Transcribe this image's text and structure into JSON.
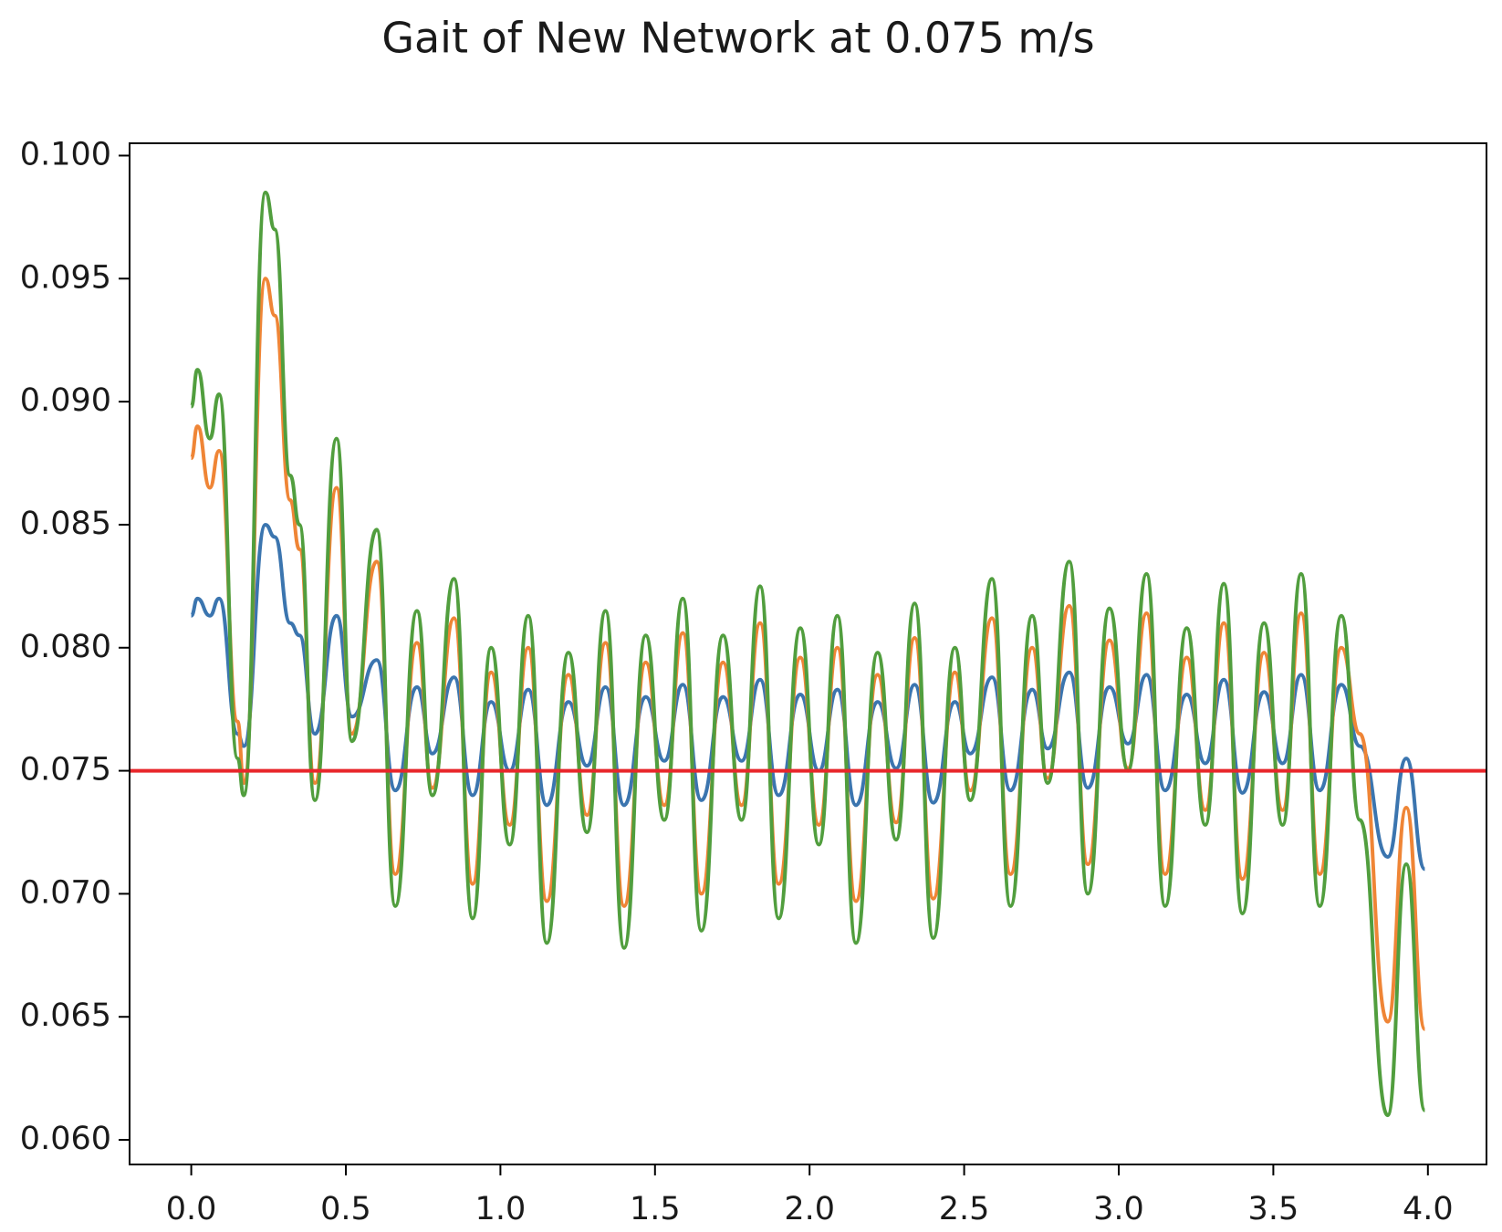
{
  "chart_data": {
    "type": "line",
    "title": "Gait of New Network at 0.075 m/s",
    "x": [
      0,
      0.02,
      0.06,
      0.09,
      0.15,
      0.17,
      0.24,
      0.27,
      0.32,
      0.35,
      0.4,
      0.47,
      0.52,
      0.6,
      0.66,
      0.73,
      0.78,
      0.85,
      0.91,
      0.97,
      1.03,
      1.09,
      1.15,
      1.22,
      1.28,
      1.34,
      1.4,
      1.47,
      1.53,
      1.59,
      1.65,
      1.72,
      1.78,
      1.84,
      1.9,
      1.97,
      2.03,
      2.09,
      2.15,
      2.22,
      2.28,
      2.34,
      2.4,
      2.47,
      2.52,
      2.59,
      2.65,
      2.72,
      2.77,
      2.84,
      2.9,
      2.97,
      3.03,
      3.09,
      3.15,
      3.22,
      3.28,
      3.34,
      3.4,
      3.47,
      3.53,
      3.59,
      3.65,
      3.72,
      3.78,
      3.87,
      3.93,
      3.99
    ],
    "series": [
      {
        "color": "#3b75af",
        "values": [
          0.0813,
          0.082,
          0.0813,
          0.082,
          0.0765,
          0.076,
          0.085,
          0.0845,
          0.081,
          0.0805,
          0.0765,
          0.0813,
          0.0772,
          0.0795,
          0.0742,
          0.0784,
          0.0757,
          0.0788,
          0.074,
          0.0778,
          0.075,
          0.0783,
          0.0736,
          0.0778,
          0.0752,
          0.0784,
          0.0736,
          0.078,
          0.0754,
          0.0785,
          0.0738,
          0.078,
          0.0754,
          0.0787,
          0.074,
          0.0781,
          0.075,
          0.0783,
          0.0736,
          0.0778,
          0.0751,
          0.0785,
          0.0737,
          0.0778,
          0.0757,
          0.0788,
          0.0742,
          0.0783,
          0.0759,
          0.079,
          0.0743,
          0.0784,
          0.0761,
          0.0789,
          0.0742,
          0.0781,
          0.0753,
          0.0787,
          0.0741,
          0.0782,
          0.0753,
          0.0789,
          0.0742,
          0.0785,
          0.076,
          0.0715,
          0.0755,
          0.071
        ]
      },
      {
        "color": "#ef8536",
        "values": [
          0.0877,
          0.089,
          0.0865,
          0.088,
          0.077,
          0.0745,
          0.095,
          0.0935,
          0.086,
          0.084,
          0.0745,
          0.0865,
          0.0765,
          0.0835,
          0.0708,
          0.0802,
          0.0743,
          0.0812,
          0.0704,
          0.079,
          0.0728,
          0.08,
          0.0697,
          0.0789,
          0.0732,
          0.0802,
          0.0695,
          0.0794,
          0.0736,
          0.0806,
          0.07,
          0.0794,
          0.0736,
          0.081,
          0.0704,
          0.0796,
          0.0728,
          0.08,
          0.0697,
          0.0789,
          0.0729,
          0.0804,
          0.0698,
          0.079,
          0.0742,
          0.0812,
          0.0708,
          0.08,
          0.0747,
          0.0817,
          0.0712,
          0.0803,
          0.0751,
          0.0814,
          0.0708,
          0.0796,
          0.0734,
          0.081,
          0.0706,
          0.0798,
          0.0734,
          0.0814,
          0.0708,
          0.08,
          0.0765,
          0.0648,
          0.0735,
          0.0645
        ]
      },
      {
        "color": "#519e3e",
        "values": [
          0.0898,
          0.0913,
          0.0885,
          0.0903,
          0.0755,
          0.074,
          0.0985,
          0.097,
          0.087,
          0.085,
          0.0738,
          0.0885,
          0.0762,
          0.0848,
          0.0695,
          0.0815,
          0.074,
          0.0828,
          0.069,
          0.08,
          0.072,
          0.0813,
          0.068,
          0.0798,
          0.0725,
          0.0815,
          0.0678,
          0.0805,
          0.073,
          0.082,
          0.0685,
          0.0805,
          0.073,
          0.0825,
          0.069,
          0.0808,
          0.072,
          0.0813,
          0.068,
          0.0798,
          0.0722,
          0.0818,
          0.0682,
          0.08,
          0.0738,
          0.0828,
          0.0695,
          0.0813,
          0.0745,
          0.0835,
          0.07,
          0.0816,
          0.075,
          0.083,
          0.0695,
          0.0808,
          0.0728,
          0.0826,
          0.0692,
          0.081,
          0.0728,
          0.083,
          0.0695,
          0.0813,
          0.073,
          0.061,
          0.0712,
          0.0612
        ]
      }
    ],
    "hline": 0.075,
    "hline_color": "#e8262a",
    "xlim": [
      -0.1995,
      4.1895
    ],
    "xticks": [
      {
        "value": 0,
        "label": "0.0"
      },
      {
        "value": 0.5,
        "label": "0.5"
      },
      {
        "value": 1,
        "label": "1.0"
      },
      {
        "value": 1.5,
        "label": "1.5"
      },
      {
        "value": 2,
        "label": "2.0"
      },
      {
        "value": 2.5,
        "label": "2.5"
      },
      {
        "value": 3,
        "label": "3.0"
      },
      {
        "value": 3.5,
        "label": "3.5"
      },
      {
        "value": 4,
        "label": "4.0"
      }
    ],
    "ylim": [
      0.059,
      0.1005
    ],
    "yticks": [
      {
        "value": 0.06,
        "label": "0.060"
      },
      {
        "value": 0.065,
        "label": "0.065"
      },
      {
        "value": 0.07,
        "label": "0.070"
      },
      {
        "value": 0.075,
        "label": "0.075"
      },
      {
        "value": 0.08,
        "label": "0.080"
      },
      {
        "value": 0.085,
        "label": "0.085"
      },
      {
        "value": 0.09,
        "label": "0.090"
      },
      {
        "value": 0.095,
        "label": "0.095"
      },
      {
        "value": 0.1,
        "label": "0.100"
      }
    ],
    "grid": false
  }
}
